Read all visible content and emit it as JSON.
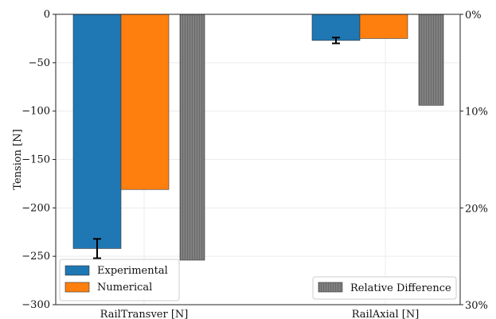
{
  "chart_data": {
    "type": "bar",
    "categories": [
      "RailTransver [N]",
      "RailAxial [N]"
    ],
    "series": [
      {
        "name": "Experimental",
        "axis": "left",
        "values": [
          -242,
          -27
        ],
        "error": [
          10,
          3
        ],
        "color": "#1f77b4"
      },
      {
        "name": "Numerical",
        "axis": "left",
        "values": [
          -181,
          -25
        ],
        "color": "#ff7f0e"
      },
      {
        "name": "Relative Difference",
        "axis": "right",
        "values": [
          25.4,
          9.4
        ],
        "color": "#808080",
        "hatch": "vertical"
      }
    ],
    "ylabel": "Tension [N]",
    "ylim": [
      -300,
      0
    ],
    "yticks": [
      "0",
      "−50",
      "−100",
      "−150",
      "−200",
      "−250",
      "−300"
    ],
    "y2lim": [
      0,
      30
    ],
    "y2ticks": [
      "0%",
      "10%",
      "20%",
      "30%"
    ],
    "grid": true,
    "legend_left_placement": "lower-left",
    "legend_right_placement": "lower-right"
  }
}
